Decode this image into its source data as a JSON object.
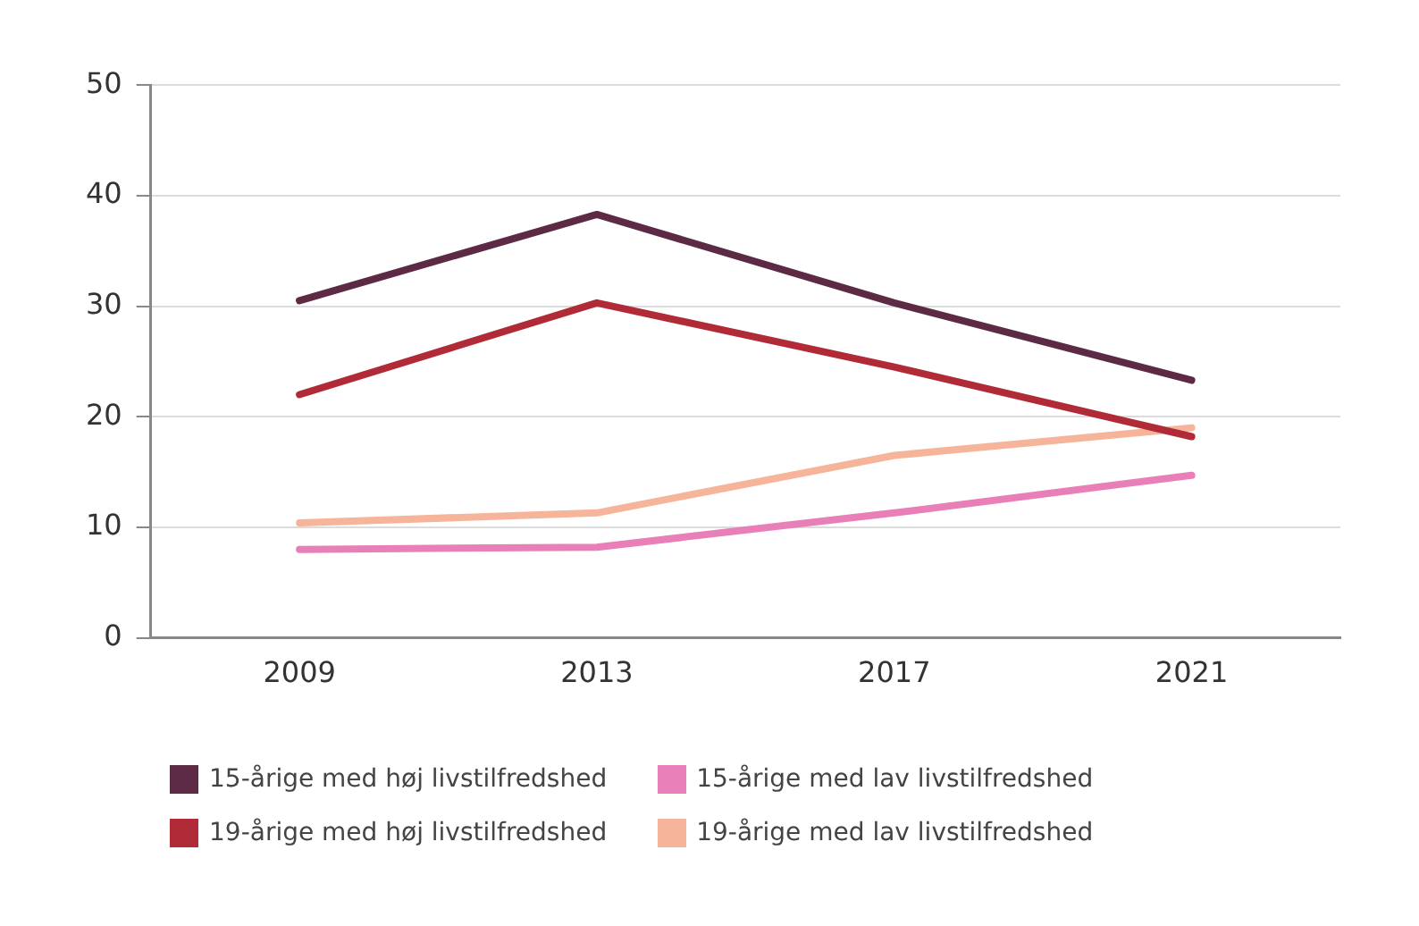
{
  "chart_data": {
    "type": "line",
    "categories": [
      "2009",
      "2013",
      "2017",
      "2021"
    ],
    "series": [
      {
        "name": "15-årige med høj livstilfredshed",
        "color": "#5c2a45",
        "values": [
          30.5,
          38.3,
          30.3,
          23.3
        ]
      },
      {
        "name": "19-årige med høj livstilfredshed",
        "color": "#b02a37",
        "values": [
          22,
          30.3,
          24.5,
          18.2
        ]
      },
      {
        "name": "15-årige med lav livstilfredshed",
        "color": "#e97fb8",
        "values": [
          8,
          8.2,
          11.3,
          14.7
        ]
      },
      {
        "name": "19-årige med lav livstilfredshed",
        "color": "#f6b49a",
        "values": [
          10.4,
          11.3,
          16.5,
          19
        ]
      }
    ],
    "ylim": [
      0,
      50
    ],
    "yticks": [
      0,
      10,
      20,
      30,
      40,
      50
    ],
    "grid": "y",
    "legend": "bottom",
    "marker": "none",
    "line_style": "solid"
  }
}
